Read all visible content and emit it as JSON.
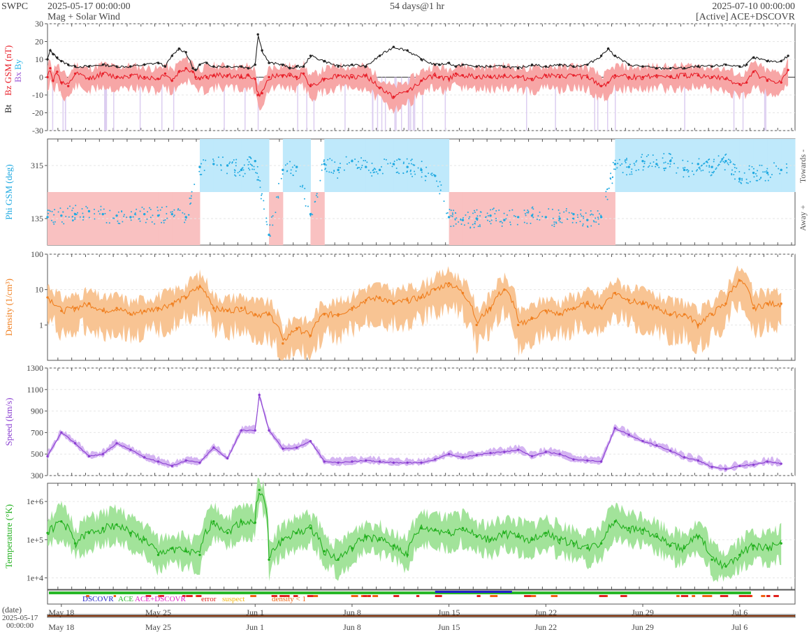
{
  "header": {
    "source": "SWPC",
    "start": "2025-05-17 00:00:00",
    "subtitle": "Mag + Solar Wind",
    "span": "54 days@1 hr",
    "end": "2025-07-10 00:00:00",
    "active": "[Active] ACE+DSCOVR"
  },
  "colors": {
    "bt": "#222222",
    "bz": "#e8202a",
    "bz_fill": "#f7a6a6",
    "bx": "#9b59d6",
    "by": "#2bb7e8",
    "phi": "#1fa9e1",
    "phi_toward": "#bfe9fb",
    "phi_away": "#f9c1c1",
    "density": "#f07f1f",
    "density_fill": "#f8c493",
    "speed": "#8a3fd1",
    "speed_fill": "#d4b3f2",
    "temperature": "#22b01e",
    "temperature_fill": "#a2e39a",
    "dscovr": "#2020c8",
    "ace": "#28b828",
    "ace_dscovr": "#e020c8",
    "error": "#e0201c",
    "suspect": "#f2b50c",
    "density_lt1": "#f06010"
  },
  "timeline": {
    "date_label": "(date)",
    "start_date": "2025-05-17",
    "start_time": "00:00:00",
    "ticks": [
      "May 18",
      "May 25",
      "Jun 1",
      "Jun 8",
      "Jun 15",
      "Jun 22",
      "Jun 29",
      "Jul 6"
    ]
  },
  "legend": [
    "DSCOVR",
    "ACE",
    "ACE+DSCOVR",
    "error",
    "suspect",
    "density < 1"
  ],
  "chart_data": [
    {
      "type": "line",
      "name": "Magnetic field",
      "ylabel_parts": [
        "Bt",
        "Bz GSM (nT)",
        "Bx",
        "By"
      ],
      "ylim": [
        -30,
        30
      ],
      "yticks": [
        "30",
        "20",
        "10",
        "0",
        "-10",
        "-20",
        "-30"
      ],
      "x_days": [
        0.0,
        0.2,
        0.4,
        0.7,
        1,
        1.5,
        2,
        3,
        4,
        5,
        6,
        7,
        8,
        8.5,
        9,
        9.5,
        10,
        10.5,
        10.7,
        11,
        11.5,
        12,
        13,
        14,
        14.5,
        15,
        15.2,
        15.5,
        16,
        17,
        17.5,
        18,
        18.5,
        19,
        20,
        21,
        22,
        23,
        24,
        25,
        26,
        27,
        28,
        28.3,
        29,
        29.5,
        30,
        31,
        32,
        33,
        34,
        35,
        36,
        37,
        38,
        39,
        40,
        40.5,
        41,
        42,
        43,
        44,
        45,
        46,
        47,
        48,
        49,
        50,
        50.5,
        51,
        52,
        53,
        53.5
      ],
      "series": [
        {
          "name": "Bt",
          "values": [
            10,
            15,
            13,
            11,
            9,
            7,
            6,
            6,
            7,
            6,
            6,
            7,
            8,
            6,
            12,
            16,
            14,
            5,
            4,
            7,
            8,
            6,
            6,
            6,
            5,
            7,
            24,
            15,
            8,
            7,
            5,
            6,
            6,
            12,
            9,
            6,
            7,
            6,
            12,
            17,
            15,
            10,
            7,
            7,
            8,
            6,
            7,
            6,
            6,
            6,
            5,
            7,
            6,
            7,
            6,
            7,
            12,
            16,
            12,
            7,
            6,
            5,
            5,
            5,
            6,
            6,
            7,
            6,
            7,
            11,
            9,
            9,
            12
          ]
        },
        {
          "name": "Bz GSM",
          "values": [
            0,
            5,
            -2,
            3,
            -3,
            -5,
            2,
            -1,
            2,
            0,
            1,
            0,
            -1,
            2,
            -2,
            3,
            5,
            3,
            0,
            -1,
            0,
            1,
            1,
            0,
            1,
            -1,
            -10,
            -9,
            0,
            1,
            1,
            0,
            2,
            -5,
            -1,
            1,
            0,
            1,
            -6,
            -11,
            -8,
            -2,
            1,
            0,
            -1,
            2,
            1,
            0,
            0,
            1,
            0,
            -1,
            1,
            0,
            1,
            0,
            -5,
            -3,
            1,
            0,
            0,
            1,
            0,
            1,
            1,
            0,
            -1,
            -4,
            -3,
            3,
            -2,
            -3,
            4
          ]
        }
      ]
    },
    {
      "type": "scatter",
      "name": "Phi",
      "ylabel": "Phi GSM (deg)",
      "ylim": [
        45,
        405
      ],
      "yticks": [
        "315",
        "135"
      ],
      "side_labels": [
        "Towards -",
        "Away +"
      ],
      "x_days": [
        0,
        1,
        2,
        3,
        4,
        5,
        6,
        7,
        8,
        9,
        10,
        11,
        12,
        13,
        14,
        15,
        16,
        17,
        18,
        19,
        20,
        21,
        22,
        23,
        24,
        25,
        26,
        27,
        28,
        29,
        30,
        31,
        32,
        33,
        34,
        35,
        36,
        37,
        38,
        39,
        40,
        41,
        42,
        43,
        44,
        45,
        46,
        47,
        48,
        49,
        50,
        51,
        52,
        53
      ],
      "values": [
        140,
        145,
        150,
        160,
        150,
        145,
        140,
        150,
        145,
        150,
        140,
        310,
        320,
        315,
        300,
        330,
        80,
        300,
        310,
        150,
        320,
        300,
        330,
        310,
        300,
        320,
        310,
        300,
        280,
        140,
        130,
        135,
        145,
        130,
        140,
        145,
        140,
        135,
        150,
        130,
        140,
        320,
        310,
        330,
        320,
        330,
        300,
        320,
        310,
        330,
        270,
        290,
        290,
        300
      ]
    },
    {
      "type": "line",
      "name": "Density",
      "ylabel": "Density (1/cm³)",
      "scale": "log",
      "ylim": [
        0.1,
        100
      ],
      "yticks": [
        "100",
        "10",
        "1"
      ],
      "x_days": [
        0,
        1,
        2,
        3,
        4,
        5,
        6,
        7,
        8,
        9,
        10,
        11,
        12,
        13,
        14,
        15,
        16,
        17,
        18,
        19,
        20,
        21,
        22,
        23,
        24,
        25,
        26,
        27,
        28,
        29,
        30,
        31,
        32,
        33,
        34,
        35,
        36,
        37,
        38,
        39,
        40,
        41,
        42,
        43,
        44,
        45,
        46,
        47,
        48,
        49,
        50,
        51,
        52,
        53
      ],
      "values": [
        6,
        2.5,
        3,
        4,
        2.5,
        3,
        2,
        2.5,
        3,
        4,
        6,
        12,
        3,
        2.5,
        3,
        2,
        2,
        0.3,
        0.8,
        0.5,
        2,
        2,
        3,
        5,
        6,
        4,
        5,
        6,
        10,
        15,
        8,
        1,
        3,
        10,
        1,
        1.5,
        2.5,
        2,
        3,
        4,
        3,
        8,
        5,
        4,
        3,
        2,
        2,
        1,
        2,
        4,
        18,
        3,
        4,
        4
      ]
    },
    {
      "type": "line",
      "name": "Speed",
      "ylabel": "Speed (km/s)",
      "ylim": [
        300,
        1300
      ],
      "yticks": [
        "1300",
        "1100",
        "900",
        "700",
        "500",
        "300"
      ],
      "x_days": [
        0,
        1,
        2,
        3,
        4,
        5,
        6,
        7,
        8,
        9,
        10,
        11,
        12,
        13,
        14,
        15,
        15.3,
        16,
        17,
        18,
        19,
        20,
        21,
        22,
        23,
        24,
        25,
        26,
        27,
        28,
        29,
        30,
        31,
        32,
        33,
        34,
        35,
        36,
        37,
        38,
        39,
        40,
        41,
        42,
        43,
        44,
        45,
        46,
        47,
        48,
        49,
        50,
        51,
        52,
        53
      ],
      "values": [
        480,
        700,
        600,
        480,
        500,
        600,
        540,
        470,
        430,
        390,
        440,
        420,
        560,
        460,
        720,
        720,
        1050,
        720,
        550,
        560,
        620,
        430,
        420,
        430,
        440,
        430,
        420,
        420,
        420,
        450,
        500,
        470,
        490,
        510,
        520,
        540,
        480,
        520,
        500,
        450,
        440,
        430,
        740,
        680,
        620,
        580,
        530,
        470,
        440,
        380,
        360,
        390,
        400,
        430,
        410
      ]
    },
    {
      "type": "line",
      "name": "Temperature",
      "ylabel": "Temperature (°K)",
      "scale": "log",
      "ylim": [
        5000,
        3000000
      ],
      "yticks": [
        "1e+6",
        "1e+5",
        "1e+4"
      ],
      "x_days": [
        0,
        1,
        2,
        3,
        4,
        5,
        6,
        7,
        8,
        9,
        10,
        11,
        12,
        13,
        14,
        15,
        15.3,
        16,
        17,
        18,
        19,
        20,
        21,
        22,
        23,
        24,
        25,
        26,
        27,
        28,
        29,
        30,
        31,
        32,
        33,
        34,
        35,
        36,
        37,
        38,
        39,
        40,
        41,
        42,
        43,
        44,
        45,
        46,
        47,
        48,
        49,
        50,
        51,
        52,
        53
      ],
      "values": [
        150000,
        300000,
        80000,
        150000,
        200000,
        250000,
        150000,
        100000,
        40000,
        60000,
        50000,
        40000,
        300000,
        150000,
        300000,
        280000,
        2000000,
        30000,
        100000,
        150000,
        200000,
        50000,
        30000,
        60000,
        120000,
        100000,
        70000,
        40000,
        200000,
        180000,
        150000,
        200000,
        120000,
        100000,
        150000,
        120000,
        100000,
        150000,
        100000,
        80000,
        60000,
        80000,
        300000,
        200000,
        180000,
        120000,
        70000,
        60000,
        120000,
        30000,
        20000,
        40000,
        70000,
        60000,
        80000
      ]
    }
  ]
}
